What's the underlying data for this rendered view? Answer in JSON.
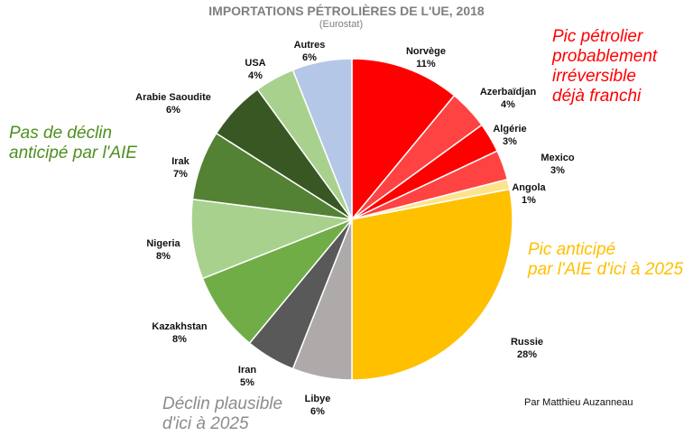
{
  "chart_data": {
    "type": "pie",
    "title": "IMPORTATIONS PÉTROLIÈRES DE L'UE, 2018",
    "subtitle": "(Eurostat)",
    "start": "top",
    "direction": "clockwise",
    "slices": [
      {
        "label": "Norvège",
        "value": 11,
        "pct": "11%",
        "color": "#ff0000"
      },
      {
        "label": "Azerbaïdjan",
        "value": 4,
        "pct": "4%",
        "color": "#ff4343"
      },
      {
        "label": "Algérie",
        "value": 3,
        "pct": "3%",
        "color": "#ff0000"
      },
      {
        "label": "Mexico",
        "value": 3,
        "pct": "3%",
        "color": "#ff4343"
      },
      {
        "label": "Angola",
        "value": 1,
        "pct": "1%",
        "color": "#fde38a"
      },
      {
        "label": "Russie",
        "value": 28,
        "pct": "28%",
        "color": "#ffc000"
      },
      {
        "label": "Libye",
        "value": 6,
        "pct": "6%",
        "color": "#aeaaaa"
      },
      {
        "label": "Iran",
        "value": 5,
        "pct": "5%",
        "color": "#595959"
      },
      {
        "label": "Kazakhstan",
        "value": 8,
        "pct": "8%",
        "color": "#70ad47"
      },
      {
        "label": "Nigeria",
        "value": 8,
        "pct": "8%",
        "color": "#a9d18e"
      },
      {
        "label": "Irak",
        "value": 7,
        "pct": "7%",
        "color": "#548235"
      },
      {
        "label": "Arabie Saoudite",
        "value": 6,
        "pct": "6%",
        "color": "#385723"
      },
      {
        "label": "USA",
        "value": 4,
        "pct": "4%",
        "color": "#a9d18e"
      },
      {
        "label": "Autres",
        "value": 6,
        "pct": "6%",
        "color": "#b4c7e7"
      }
    ],
    "annotations": [
      {
        "lines": [
          "Pic pétrolier",
          "probablement",
          "irréversible",
          "déjà franchi"
        ],
        "color": "#ff0000"
      },
      {
        "lines": [
          "Pas de déclin",
          "anticipé par l'AIE"
        ],
        "color": "#4e8f1f"
      },
      {
        "lines": [
          "Pic anticipé",
          "par l'AIE d'ici à 2025"
        ],
        "color": "#ffc000"
      },
      {
        "lines": [
          "Déclin plausible",
          "d'ici à 2025"
        ],
        "color": "#8c8c8c"
      }
    ],
    "credit": "Par Matthieu Auzanneau"
  }
}
